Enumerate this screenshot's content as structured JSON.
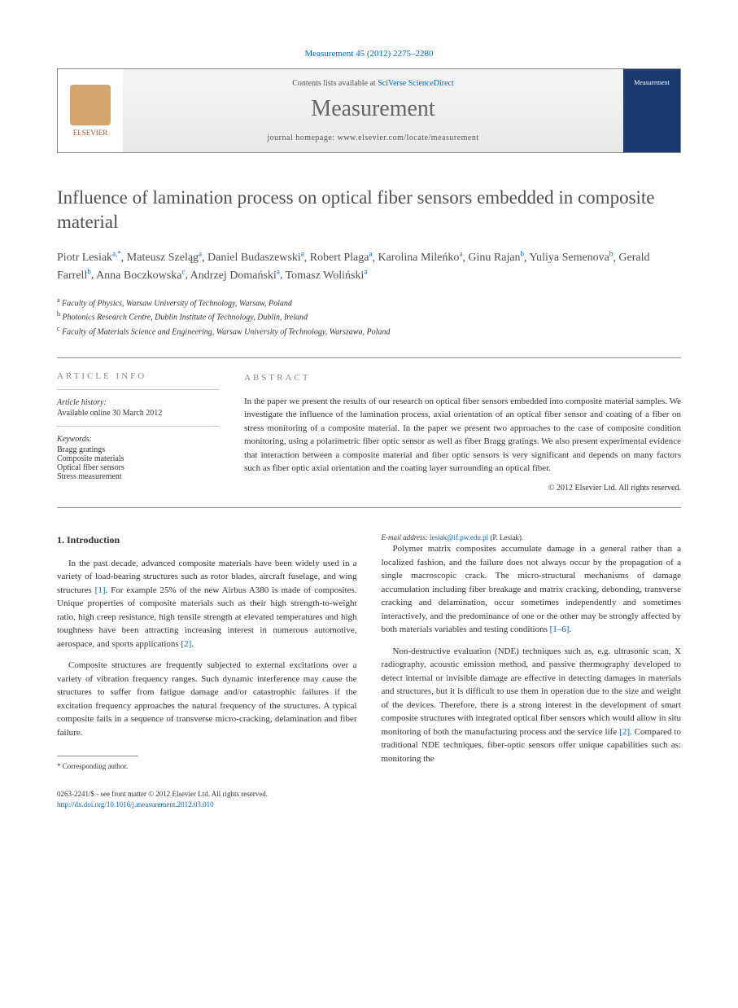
{
  "journal_ref": {
    "prefix": "Measurement 45 (2012) 2275–2280",
    "link_text": "Measurement 45 (2012) 2275–2280"
  },
  "header": {
    "contents_prefix": "Contents lists available at ",
    "contents_link": "SciVerse ScienceDirect",
    "journal_title": "Measurement",
    "homepage_label": "journal homepage: ",
    "homepage_url": "www.elsevier.com/locate/measurement",
    "publisher": "ELSEVIER",
    "cover_label": "Measurement"
  },
  "article": {
    "title": "Influence of lamination process on optical fiber sensors embedded in composite material"
  },
  "authors": [
    {
      "name": "Piotr Lesiak",
      "aff": "a,",
      "corr": "*"
    },
    {
      "name": "Mateusz Szeląg",
      "aff": "a"
    },
    {
      "name": "Daniel Budaszewski",
      "aff": "a"
    },
    {
      "name": "Robert Plaga",
      "aff": "a"
    },
    {
      "name": "Karolina Mileńko",
      "aff": "a"
    },
    {
      "name": "Ginu Rajan",
      "aff": "b"
    },
    {
      "name": "Yuliya Semenova",
      "aff": "b"
    },
    {
      "name": "Gerald Farrell",
      "aff": "b"
    },
    {
      "name": "Anna Boczkowska",
      "aff": "c"
    },
    {
      "name": "Andrzej Domański",
      "aff": "a"
    },
    {
      "name": "Tomasz Woliński",
      "aff": "a"
    }
  ],
  "affiliations": [
    {
      "sup": "a",
      "text": "Faculty of Physics, Warsaw University of Technology, Warsaw, Poland"
    },
    {
      "sup": "b",
      "text": "Photonics Research Centre, Dublin Institute of Technology, Dublin, Ireland"
    },
    {
      "sup": "c",
      "text": "Faculty of Materials Science and Engineering, Warsaw University of Technology, Warszawa, Poland"
    }
  ],
  "info": {
    "heading": "ARTICLE INFO",
    "history_label": "Article history:",
    "history_text": "Available online 30 March 2012",
    "keywords_label": "Keywords:",
    "keywords": [
      "Bragg gratings",
      "Composite materials",
      "Optical fiber sensors",
      "Stress measurement"
    ]
  },
  "abstract": {
    "heading": "ABSTRACT",
    "text": "In the paper we present the results of our research on optical fiber sensors embedded into composite material samples. We investigate the influence of the lamination process, axial orientation of an optical fiber sensor and coating of a fiber on stress monitoring of a composite material. In the paper we present two approaches to the case of composite condition monitoring, using a polarimetric fiber optic sensor as well as fiber Bragg gratings. We also present experimental evidence that interaction between a composite material and fiber optic sensors is very significant and depends on many factors such as fiber optic axial orientation and the coating layer surrounding an optical fiber.",
    "copyright": "© 2012 Elsevier Ltd. All rights reserved."
  },
  "body": {
    "section1_heading": "1. Introduction",
    "para1": "In the past decade, advanced composite materials have been widely used in a variety of load-bearing structures such as rotor blades, aircraft fuselage, and wing structures [1]. For example 25% of the new Airbus A380 is made of composites. Unique properties of composite materials such as their high strength-to-weight ratio, high creep resistance, high tensile strength at elevated temperatures and high toughness have been attracting increasing interest in numerous automotive, aerospace, and sports applications [2].",
    "para2": "Composite structures are frequently subjected to external excitations over a variety of vibration frequency ranges. Such dynamic interference may cause the structures to suffer from fatigue damage and/or catastrophic failures if the excitation frequency approaches the natural frequency of the structures. A typical composite fails in a sequence of transverse micro-cracking, delamination and fiber failure.",
    "para3": "Polymer matrix composites accumulate damage in a general rather than a localized fashion, and the failure does not always occur by the propagation of a single macroscopic crack. The micro-structural mechanisms of damage accumulation including fiber breakage and matrix cracking, debonding, transverse cracking and delamination, occur sometimes independently and sometimes interactively, and the predominance of one or the other may be strongly affected by both materials variables and testing conditions [1–6].",
    "para4": "Non-destructive evaluation (NDE) techniques such as, e.g. ultrasonic scan, X radiography, acoustic emission method, and passive thermography developed to detect internal or invisible damage are effective in detecting damages in materials and structures, but it is difficult to use them in operation due to the size and weight of the devices. Therefore, there is a strong interest in the development of smart composite structures with integrated optical fiber sensors which would allow in situ monitoring of both the manufacturing process and the service life [2]. Compared to traditional NDE techniques, fiber-optic sensors offer unique capabilities such as: monitoring the",
    "ref1": "[1]",
    "ref2": "[2]",
    "ref16": "[1–6]",
    "ref2b": "[2]"
  },
  "footnote": {
    "corr_label": "* Corresponding author.",
    "email_label": "E-mail address: ",
    "email": "lesiak@if.pw.edu.pl",
    "email_suffix": " (P. Lesiak)."
  },
  "footer": {
    "line1": "0263-2241/$ - see front matter © 2012 Elsevier Ltd. All rights reserved.",
    "doi": "http://dx.doi.org/10.1016/j.measurement.2012.03.010"
  },
  "colors": {
    "link": "#0066cc",
    "heading_gray": "#888888",
    "text": "#333333",
    "elsevier_orange": "#d4a56a",
    "cover_blue": "#1a3a6e"
  }
}
